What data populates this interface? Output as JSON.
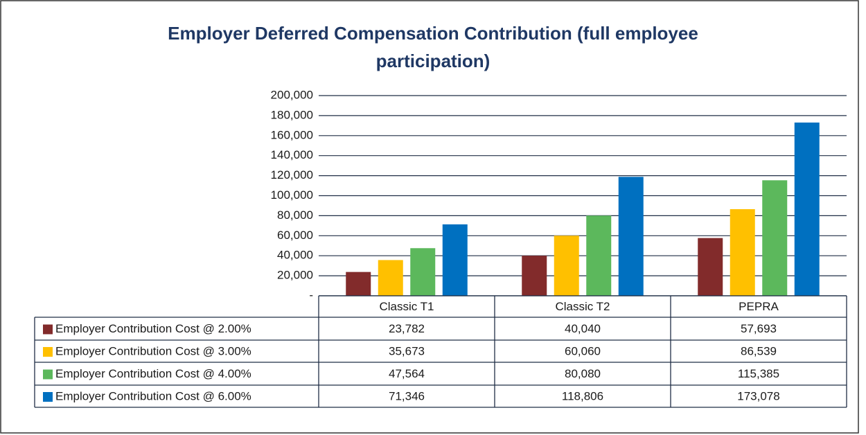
{
  "chart_data": {
    "type": "bar",
    "title": "Employer Deferred Compensation Contribution (full employee participation)",
    "categories": [
      "Classic  T1",
      "Classic  T2",
      "PEPRA"
    ],
    "series": [
      {
        "name": "Employer Contribution Cost @ 2.00%",
        "color": "#822b2b",
        "values": [
          23782,
          40040,
          57693
        ],
        "value_labels": [
          "23,782",
          "40,040",
          "57,693"
        ]
      },
      {
        "name": "Employer Contribution Cost @ 3.00%",
        "color": "#ffc000",
        "values": [
          35673,
          60060,
          86539
        ],
        "value_labels": [
          "35,673",
          "60,060",
          "86,539"
        ]
      },
      {
        "name": "Employer Contribution Cost @ 4.00%",
        "color": "#5cb85c",
        "values": [
          47564,
          80080,
          115385
        ],
        "value_labels": [
          "47,564",
          "80,080",
          "115,385"
        ]
      },
      {
        "name": "Employer Contribution Cost @ 6.00%",
        "color": "#0070c0",
        "values": [
          71346,
          118806,
          173078
        ],
        "value_labels": [
          "71,346",
          "118,806",
          "173,078"
        ]
      }
    ],
    "ylim": [
      0,
      200000
    ],
    "yticks": [
      {
        "value": 0,
        "label": "-"
      },
      {
        "value": 20000,
        "label": "20,000"
      },
      {
        "value": 40000,
        "label": "40,000"
      },
      {
        "value": 60000,
        "label": "60,000"
      },
      {
        "value": 80000,
        "label": "80,000"
      },
      {
        "value": 100000,
        "label": "100,000"
      },
      {
        "value": 120000,
        "label": "120,000"
      },
      {
        "value": 140000,
        "label": "140,000"
      },
      {
        "value": 160000,
        "label": "160,000"
      },
      {
        "value": 180000,
        "label": "180,000"
      },
      {
        "value": 200000,
        "label": "200,000"
      }
    ],
    "grid": true
  }
}
